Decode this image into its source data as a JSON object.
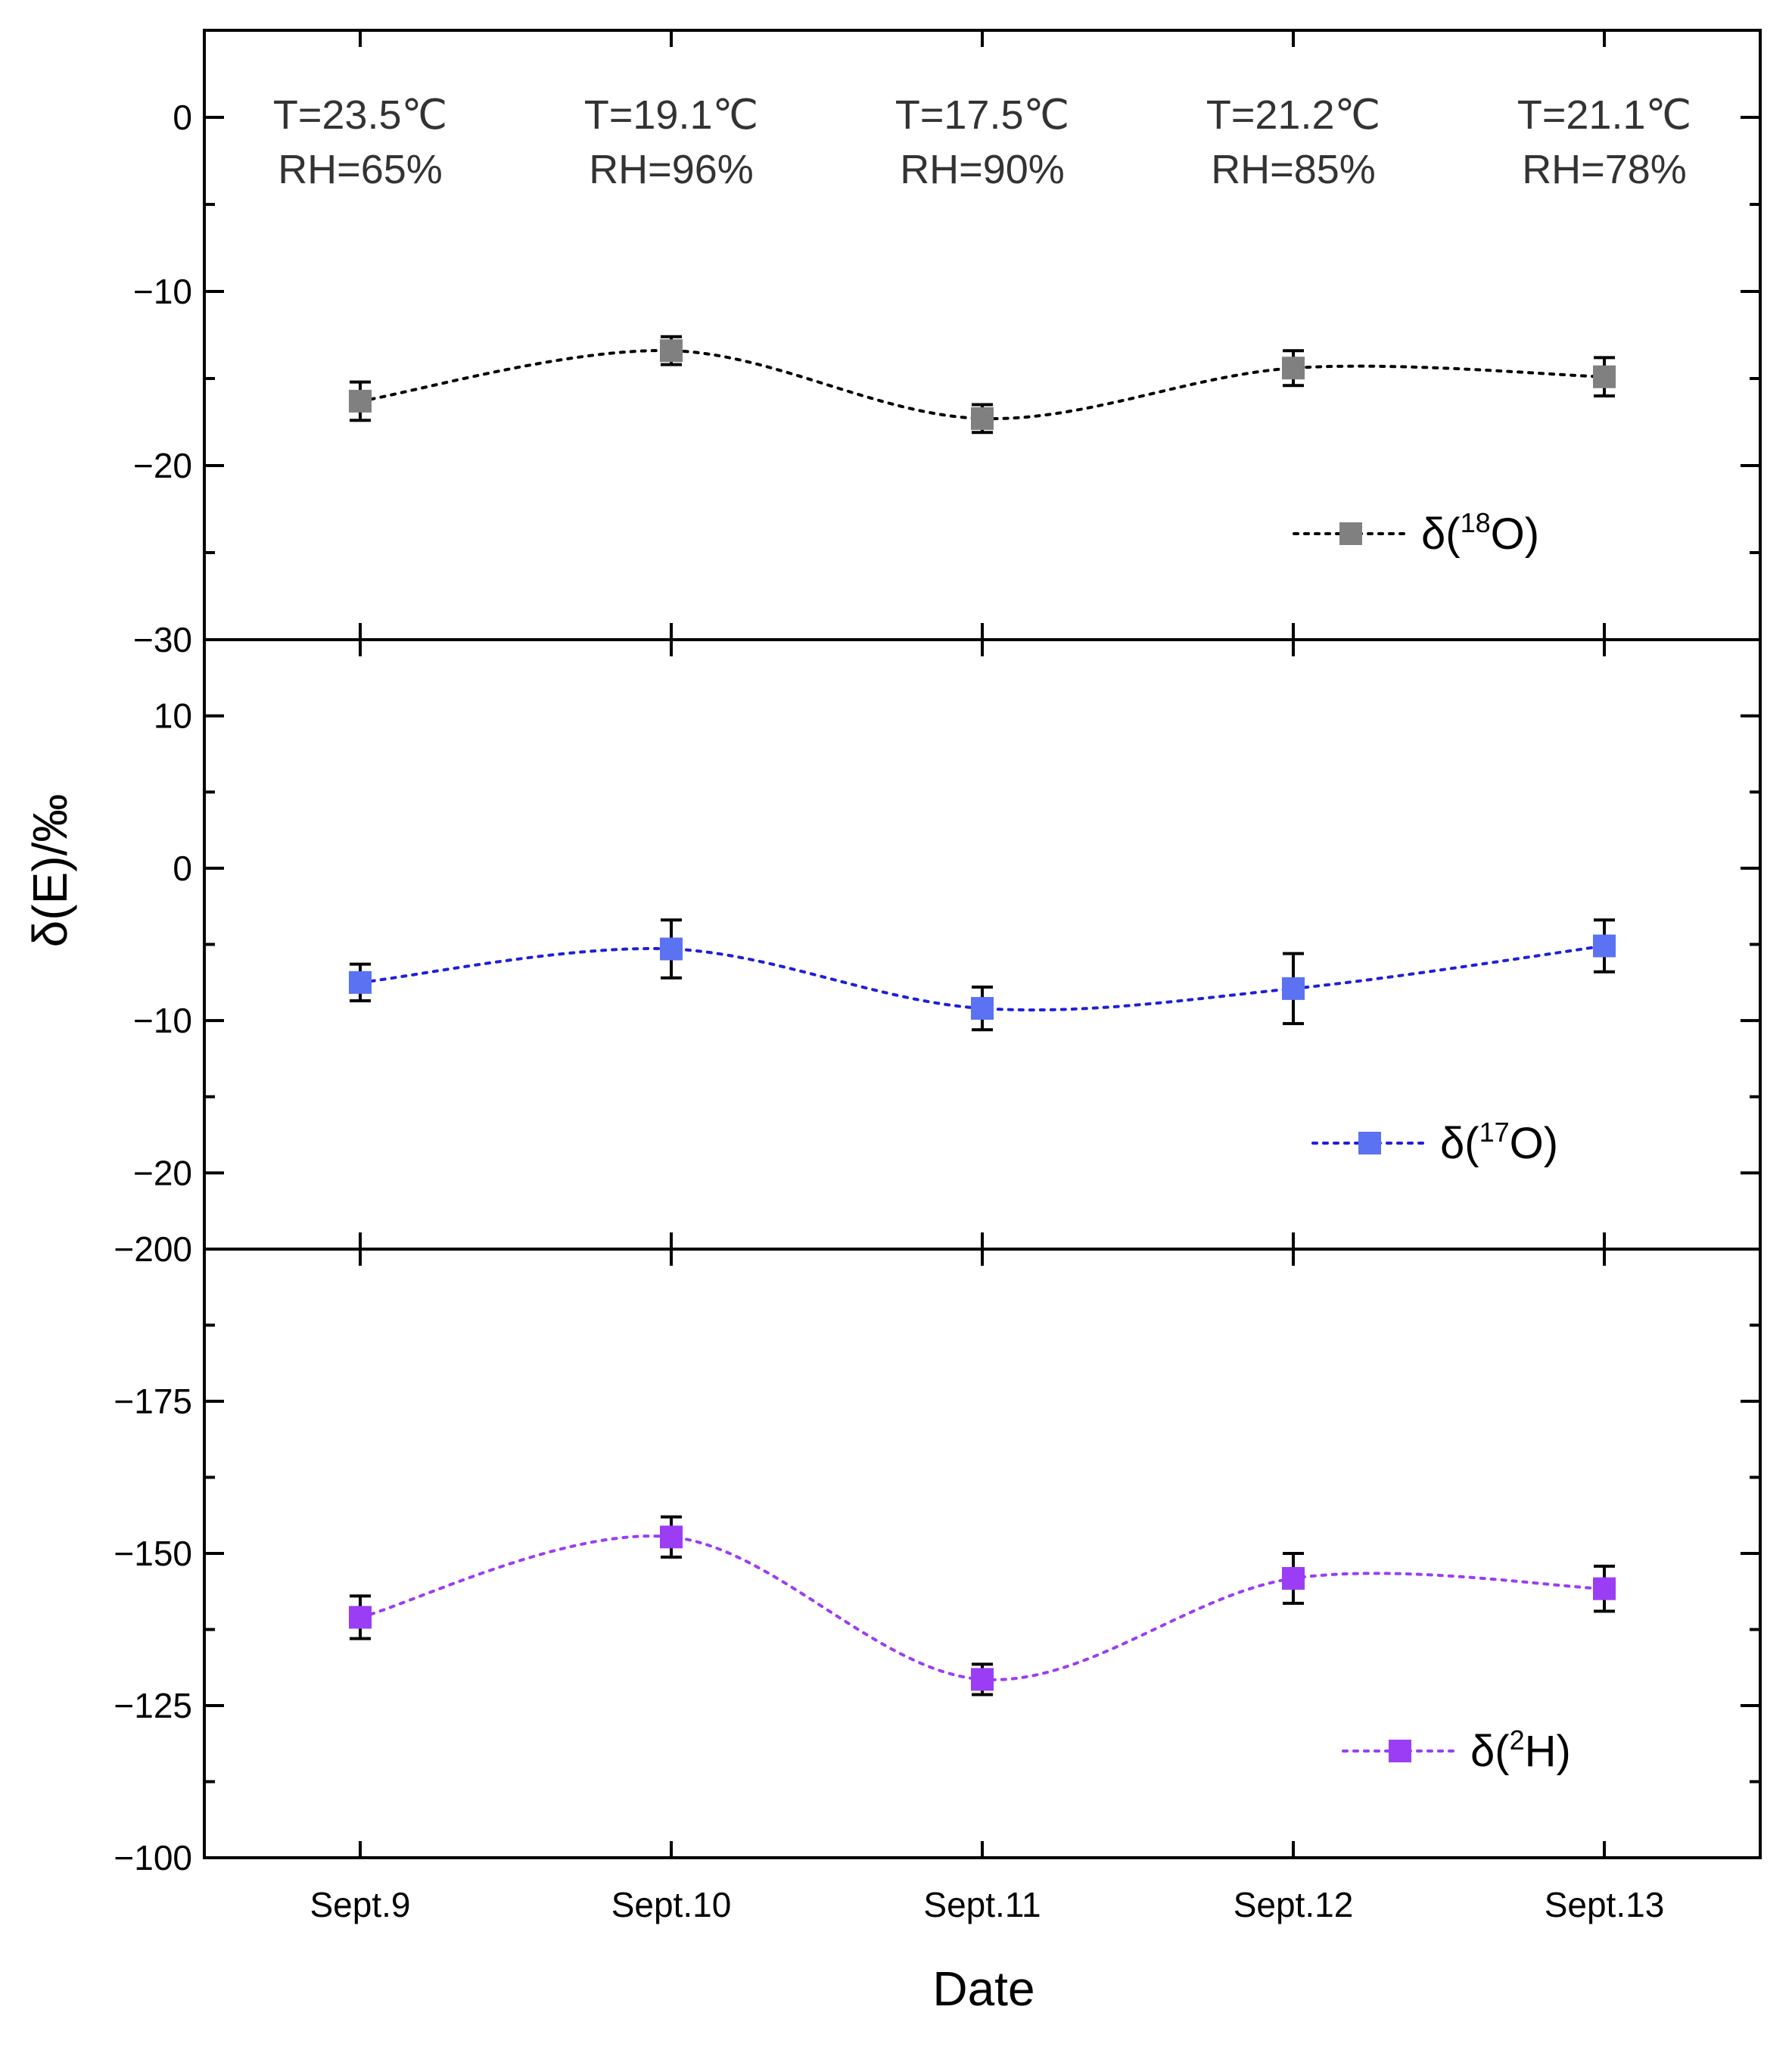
{
  "chart_data": {
    "type": "line",
    "x_title": "Date",
    "y_title": "δ(E)/‰",
    "categories": [
      "Sept.9",
      "Sept.10",
      "Sept.11",
      "Sept.12",
      "Sept.13"
    ],
    "conditions": [
      {
        "t": "T=23.5℃",
        "rh": "RH=65%"
      },
      {
        "t": "T=19.1℃",
        "rh": "RH=96%"
      },
      {
        "t": "T=17.5℃",
        "rh": "RH=90%"
      },
      {
        "t": "T=21.2℃",
        "rh": "RH=85%"
      },
      {
        "t": "T=21.1℃",
        "rh": "RH=78%"
      }
    ],
    "panels": [
      {
        "name": "d18O",
        "legend": {
          "prefix": "δ(",
          "sup": "18",
          "suffix": "O)"
        },
        "color": "#808080",
        "line_color": "#000000",
        "ylim": [
          -30,
          5
        ],
        "yticks": [
          0,
          -10,
          -20,
          -30
        ],
        "tick_labels": [
          "0",
          "−10",
          "−20",
          "−30"
        ],
        "values": [
          -16.3,
          -13.4,
          -17.3,
          -14.4,
          -14.9
        ],
        "errors": [
          1.1,
          0.8,
          0.8,
          1.0,
          1.1
        ]
      },
      {
        "name": "d17O",
        "legend": {
          "prefix": "δ(",
          "sup": "17",
          "suffix": "O)"
        },
        "color": "#5b72f2",
        "line_color": "#1f1fd9",
        "ylim": [
          -25,
          15
        ],
        "yticks": [
          10,
          0,
          -10,
          -20
        ],
        "tick_labels": [
          "10",
          "0",
          "−10",
          "−20"
        ],
        "values": [
          -7.5,
          -5.3,
          -9.2,
          -7.9,
          -5.1
        ],
        "errors": [
          1.2,
          1.9,
          1.4,
          2.3,
          1.7
        ]
      },
      {
        "name": "d2H",
        "legend": {
          "prefix": "δ(",
          "sup": "2",
          "suffix": "H)"
        },
        "color": "#9b3df5",
        "line_color": "#9b3df5",
        "ylim": [
          -100,
          -200
        ],
        "yticks": [
          -200,
          -175,
          -150,
          -125,
          -100
        ],
        "tick_labels": [
          "−200",
          "−175",
          "−150",
          "−125",
          "−100"
        ],
        "values": [
          -139.5,
          -152.7,
          -129.3,
          -145.9,
          -144.2
        ],
        "errors": [
          3.5,
          3.3,
          2.5,
          4.1,
          3.7
        ]
      }
    ]
  }
}
